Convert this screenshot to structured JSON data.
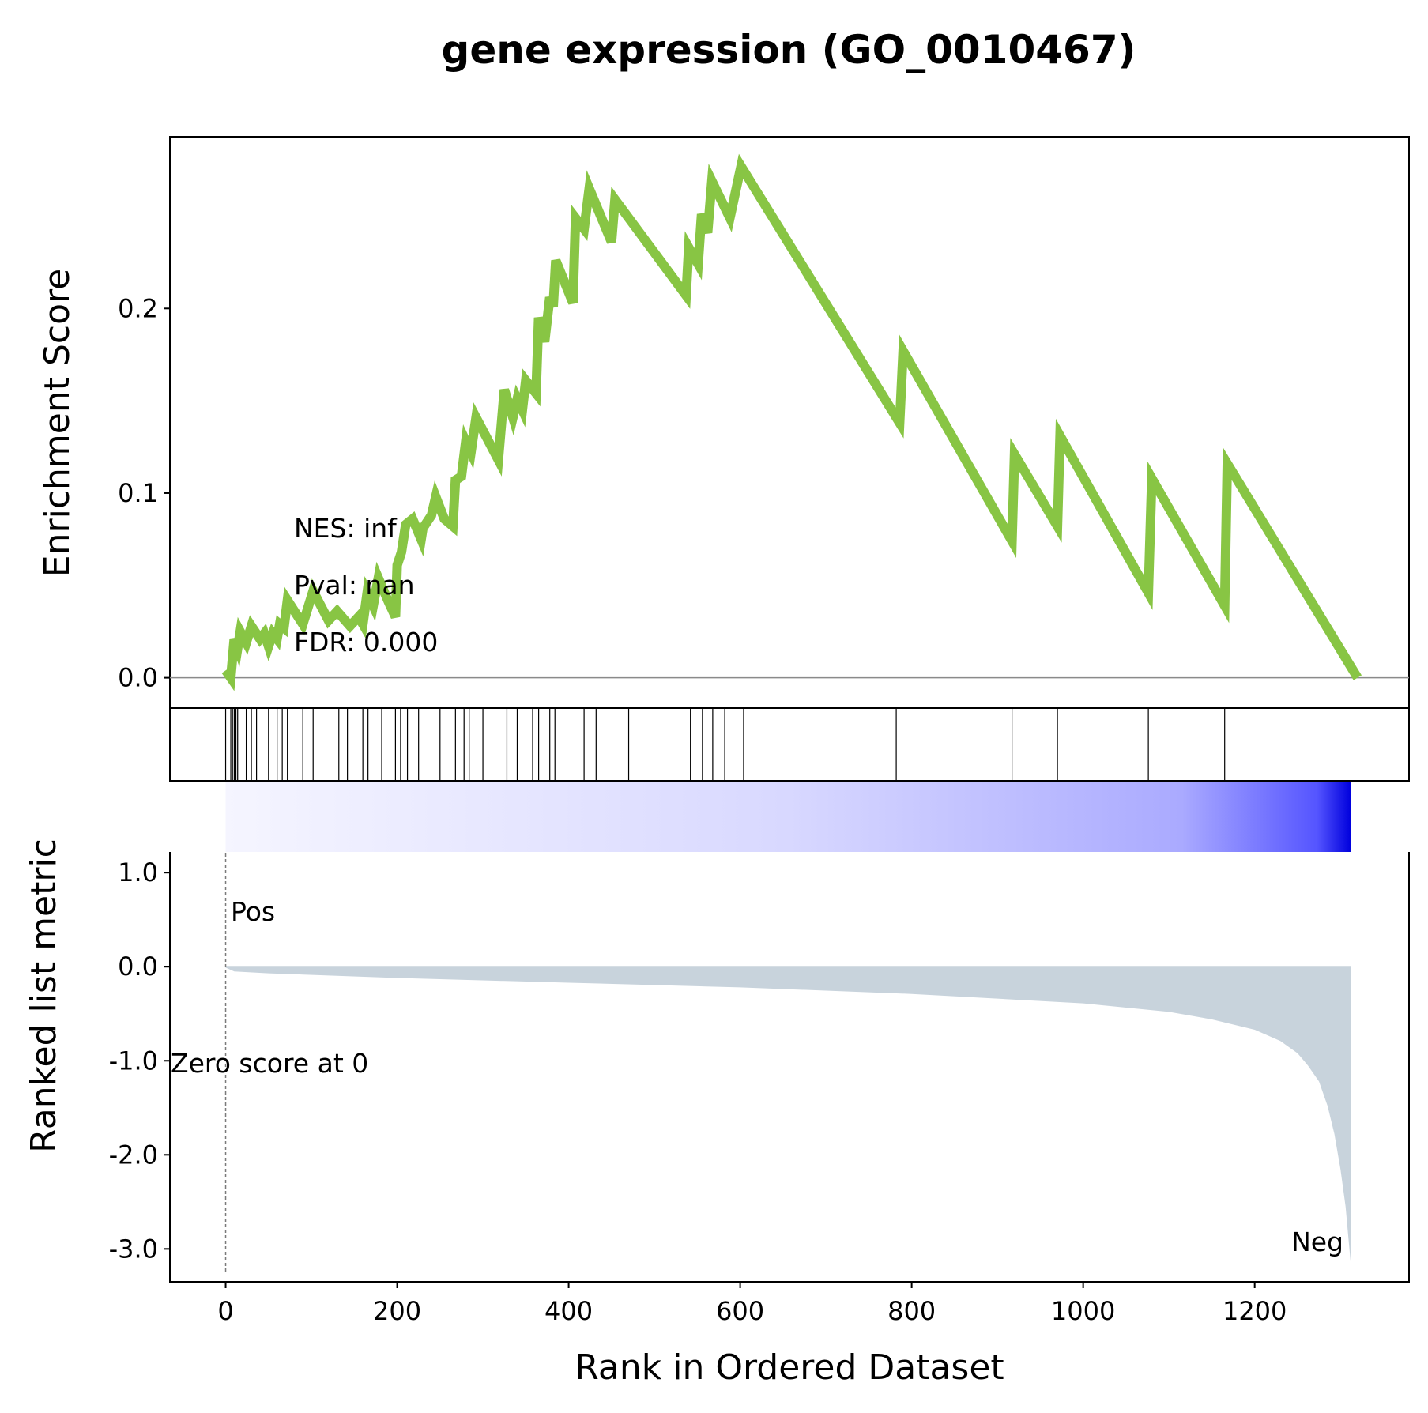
{
  "chart_data": {
    "type": "line",
    "title": "gene expression (GO_0010467)",
    "xlabel": "Rank in Ordered Dataset",
    "xlim": [
      -65,
      1380
    ],
    "xticks": [
      0,
      200,
      400,
      600,
      800,
      1000,
      1200
    ],
    "xtick_labels": [
      "0",
      "200",
      "400",
      "600",
      "800",
      "1000",
      "1200"
    ],
    "es_panel": {
      "ylabel": "Enrichment Score",
      "ylim": [
        -0.016,
        0.293
      ],
      "yticks": [
        0.0,
        0.1,
        0.2
      ],
      "ytick_labels": [
        "0.0",
        "0.1",
        "0.2"
      ],
      "line_color": "#88c544",
      "zero_line": 0.0,
      "stats": [
        "NES: inf",
        "Pval: nan",
        "FDR: 0.000"
      ],
      "running_es": [
        [
          0,
          0.004
        ],
        [
          6,
          0.0
        ],
        [
          10,
          0.021
        ],
        [
          14,
          0.016
        ],
        [
          17,
          0.025
        ],
        [
          24,
          0.019
        ],
        [
          30,
          0.028
        ],
        [
          40,
          0.021
        ],
        [
          45,
          0.024
        ],
        [
          50,
          0.017
        ],
        [
          55,
          0.024
        ],
        [
          60,
          0.021
        ],
        [
          63,
          0.029
        ],
        [
          68,
          0.027
        ],
        [
          72,
          0.042
        ],
        [
          90,
          0.029
        ],
        [
          102,
          0.047
        ],
        [
          120,
          0.031
        ],
        [
          130,
          0.036
        ],
        [
          145,
          0.028
        ],
        [
          155,
          0.033
        ],
        [
          160,
          0.029
        ],
        [
          165,
          0.046
        ],
        [
          172,
          0.039
        ],
        [
          178,
          0.054
        ],
        [
          190,
          0.041
        ],
        [
          198,
          0.033
        ],
        [
          200,
          0.061
        ],
        [
          205,
          0.068
        ],
        [
          210,
          0.083
        ],
        [
          218,
          0.086
        ],
        [
          228,
          0.075
        ],
        [
          230,
          0.081
        ],
        [
          240,
          0.088
        ],
        [
          245,
          0.098
        ],
        [
          255,
          0.086
        ],
        [
          265,
          0.082
        ],
        [
          268,
          0.107
        ],
        [
          275,
          0.109
        ],
        [
          280,
          0.128
        ],
        [
          286,
          0.122
        ],
        [
          292,
          0.141
        ],
        [
          318,
          0.118
        ],
        [
          325,
          0.156
        ],
        [
          335,
          0.141
        ],
        [
          340,
          0.151
        ],
        [
          346,
          0.145
        ],
        [
          350,
          0.161
        ],
        [
          362,
          0.154
        ],
        [
          365,
          0.195
        ],
        [
          372,
          0.182
        ],
        [
          378,
          0.206
        ],
        [
          382,
          0.201
        ],
        [
          385,
          0.226
        ],
        [
          405,
          0.203
        ],
        [
          408,
          0.249
        ],
        [
          418,
          0.243
        ],
        [
          424,
          0.265
        ],
        [
          450,
          0.236
        ],
        [
          454,
          0.259
        ],
        [
          537,
          0.207
        ],
        [
          540,
          0.233
        ],
        [
          551,
          0.224
        ],
        [
          555,
          0.251
        ],
        [
          562,
          0.241
        ],
        [
          567,
          0.269
        ],
        [
          588,
          0.249
        ],
        [
          601,
          0.277
        ],
        [
          786,
          0.138
        ],
        [
          790,
          0.177
        ],
        [
          917,
          0.074
        ],
        [
          920,
          0.121
        ],
        [
          970,
          0.082
        ],
        [
          973,
          0.131
        ],
        [
          1076,
          0.046
        ],
        [
          1080,
          0.108
        ],
        [
          1165,
          0.039
        ],
        [
          1168,
          0.116
        ],
        [
          1320,
          0.0
        ]
      ]
    },
    "hit_ranks": [
      0,
      6,
      8,
      10,
      12,
      14,
      24,
      30,
      36,
      50,
      60,
      66,
      72,
      90,
      102,
      132,
      142,
      160,
      166,
      182,
      198,
      204,
      212,
      225,
      250,
      268,
      278,
      284,
      300,
      328,
      340,
      358,
      365,
      378,
      384,
      418,
      432,
      470,
      542,
      556,
      568,
      582,
      604,
      782,
      917,
      970,
      1076,
      1165
    ],
    "metric_panel": {
      "ylabel": "Ranked list metric",
      "ylim": [
        -3.35,
        1.22
      ],
      "yticks": [
        1.0,
        0.0,
        -1.0,
        -2.0,
        -3.0
      ],
      "ytick_labels": [
        "1.0",
        "0.0",
        "-1.0",
        "-2.0",
        "-3.0"
      ],
      "fill_color": "#c8d3dc",
      "pos_label": "Pos",
      "neg_label": "Neg",
      "pos_color": "#ff0000",
      "neg_color": "#0000ff",
      "zero_score_label": "Zero score at 0",
      "heatmap_colors": [
        "#f5f5ff",
        "#d8d8ff",
        "#aaaaff",
        "#5555ff",
        "#0000dd"
      ],
      "metric_curve": [
        [
          0,
          -0.01
        ],
        [
          10,
          -0.05
        ],
        [
          50,
          -0.07
        ],
        [
          200,
          -0.12
        ],
        [
          400,
          -0.17
        ],
        [
          600,
          -0.22
        ],
        [
          800,
          -0.29
        ],
        [
          1000,
          -0.39
        ],
        [
          1100,
          -0.48
        ],
        [
          1150,
          -0.56
        ],
        [
          1200,
          -0.67
        ],
        [
          1230,
          -0.79
        ],
        [
          1250,
          -0.92
        ],
        [
          1262,
          -1.05
        ],
        [
          1275,
          -1.22
        ],
        [
          1285,
          -1.48
        ],
        [
          1293,
          -1.78
        ],
        [
          1300,
          -2.15
        ],
        [
          1306,
          -2.55
        ],
        [
          1310,
          -2.95
        ],
        [
          1312,
          -3.15
        ]
      ]
    }
  }
}
